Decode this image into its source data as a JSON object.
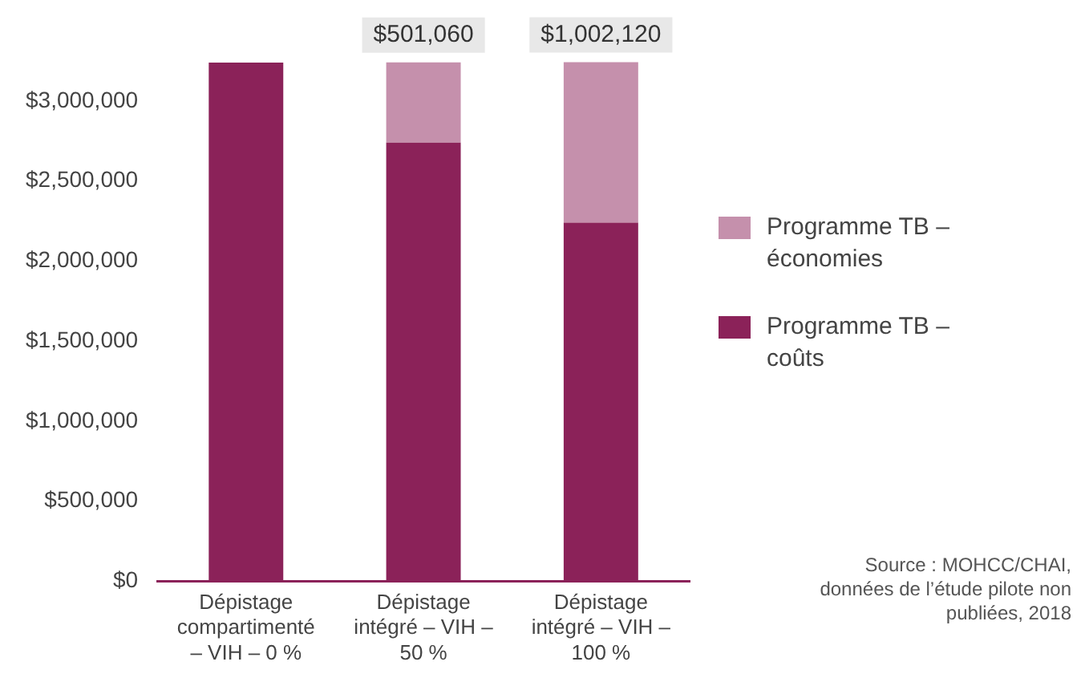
{
  "chart_data": {
    "type": "bar",
    "stacked": true,
    "categories": [
      "Dépistage compartimenté – VIH – 0 %",
      "Dépistage intégré – VIH – 50 %",
      "Dépistage intégré – VIH – 100 %"
    ],
    "series": [
      {
        "name": "Programme TB – coûts",
        "color": "#8b2259",
        "values": [
          3240000,
          2740000,
          2240000
        ]
      },
      {
        "name": "Programme TB – économies",
        "color": "#c590ac",
        "values": [
          null,
          501060,
          1002120
        ],
        "value_labels": [
          null,
          "$501,060",
          "$1,002,120"
        ]
      }
    ],
    "ylim": [
      0,
      3250000
    ],
    "yticks": [
      {
        "value": 0,
        "label": "$0"
      },
      {
        "value": 500000,
        "label": "$500,000"
      },
      {
        "value": 1000000,
        "label": "$1,000,000"
      },
      {
        "value": 1500000,
        "label": "$1,500,000"
      },
      {
        "value": 2000000,
        "label": "$2,000,000"
      },
      {
        "value": 2500000,
        "label": "$2,500,000"
      },
      {
        "value": 3000000,
        "label": "$3,000,000"
      }
    ],
    "grid": false,
    "legend": "right",
    "annotations": [
      "Source : MOHCC/CHAI, données de l’étude pilote non publiées, 2018"
    ]
  }
}
